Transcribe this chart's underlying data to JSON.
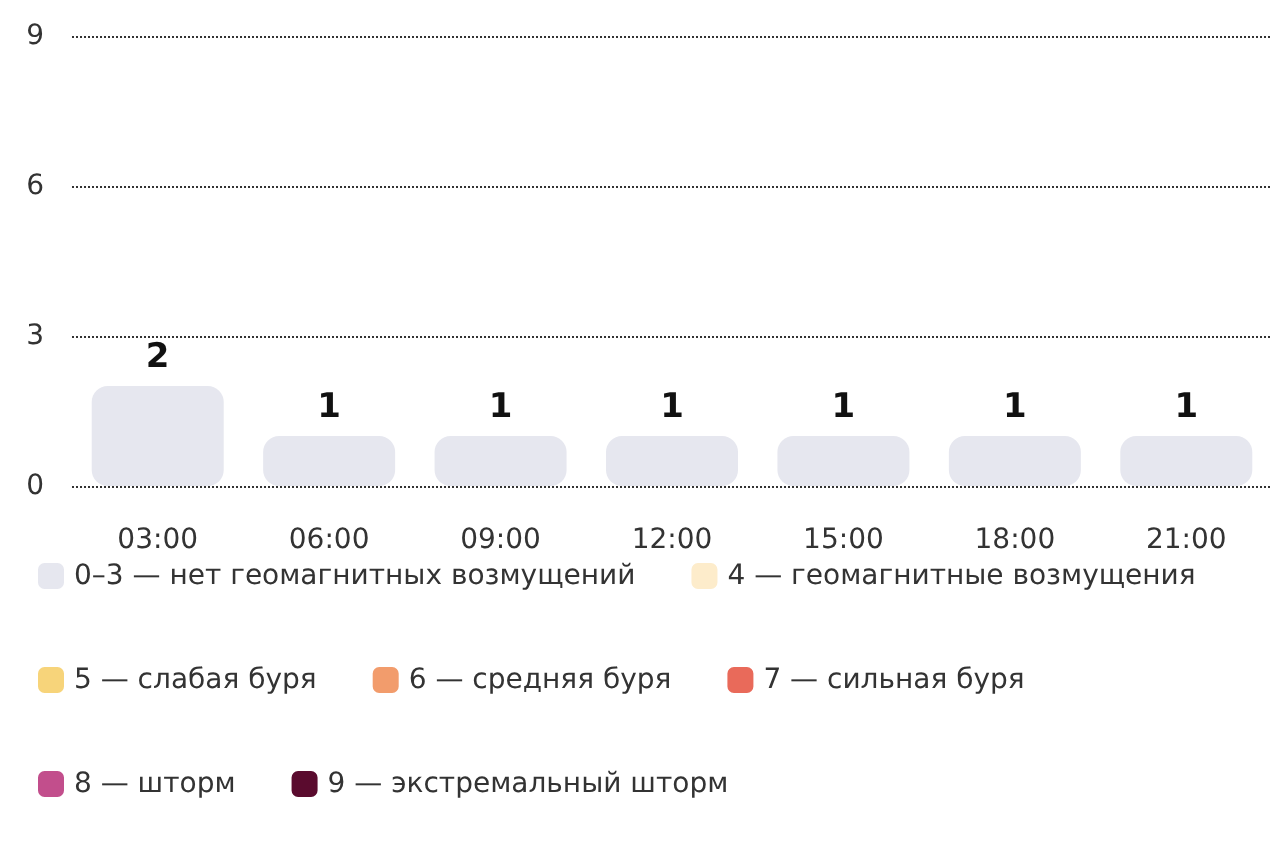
{
  "chart_data": {
    "type": "bar",
    "categories": [
      "03:00",
      "06:00",
      "09:00",
      "12:00",
      "15:00",
      "18:00",
      "21:00"
    ],
    "series": [
      {
        "name": "0–3 — нет геомагнитных возмущений",
        "color": "#e6e7ef",
        "values": [
          2,
          1,
          1,
          1,
          1,
          1,
          1
        ]
      },
      {
        "name": "4 — геомагнитные возмущения",
        "color": "#fdeccb",
        "values": [
          null,
          null,
          null,
          null,
          null,
          null,
          null
        ]
      },
      {
        "name": "5 — слабая буря",
        "color": "#f7d47a",
        "values": [
          null,
          null,
          null,
          null,
          null,
          null,
          null
        ]
      },
      {
        "name": "6 — средняя буря",
        "color": "#f29c6c",
        "values": [
          null,
          null,
          null,
          null,
          null,
          null,
          null
        ]
      },
      {
        "name": "7 — сильная буря",
        "color": "#e96a5a",
        "values": [
          null,
          null,
          null,
          null,
          null,
          null,
          null
        ]
      },
      {
        "name": "8 — шторм",
        "color": "#c24e8c",
        "values": [
          null,
          null,
          null,
          null,
          null,
          null,
          null
        ]
      },
      {
        "name": "9 — экстремальный шторм",
        "color": "#5a0b2e",
        "values": [
          null,
          null,
          null,
          null,
          null,
          null,
          null
        ]
      }
    ],
    "stacked": true,
    "ylim": [
      0,
      9
    ],
    "yticks": [
      0,
      3,
      6,
      9
    ],
    "grid": "y",
    "legend": "bottom",
    "data_labels": true
  }
}
